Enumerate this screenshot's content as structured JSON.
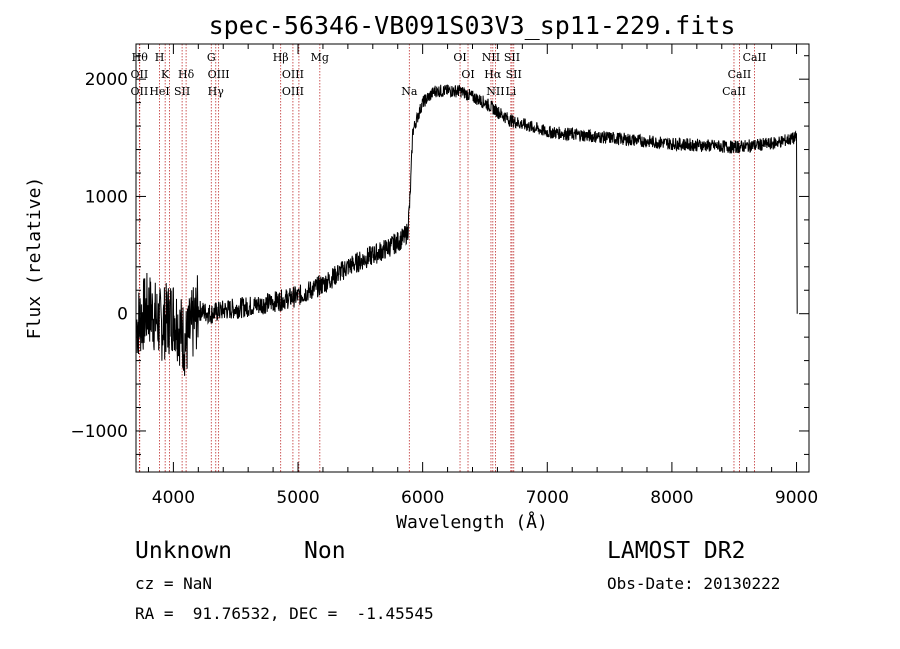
{
  "chart_data": {
    "type": "line",
    "title": "spec-56346-VB091S03V3_sp11-229.fits",
    "xlabel": "Wavelength (Å)",
    "ylabel": "Flux (relative)",
    "xlim": [
      3700,
      9100
    ],
    "ylim": [
      -1350,
      2300
    ],
    "x_ticks": [
      4000,
      5000,
      6000,
      7000,
      8000,
      9000
    ],
    "y_ticks": [
      -1000,
      0,
      1000,
      2000
    ],
    "x_tick_labels": [
      "4000",
      "5000",
      "6000",
      "7000",
      "8000",
      "9000"
    ],
    "y_tick_labels": [
      "−1000",
      "0",
      "1000",
      "2000"
    ],
    "grid": false,
    "line_color": "#000000",
    "marker_color": "#c03030",
    "spectrum_knots": [
      [
        3700,
        -100
      ],
      [
        3800,
        50
      ],
      [
        3900,
        -100
      ],
      [
        4000,
        0
      ],
      [
        4100,
        -250
      ],
      [
        4200,
        30
      ],
      [
        4300,
        0
      ],
      [
        4400,
        30
      ],
      [
        4600,
        60
      ],
      [
        4800,
        100
      ],
      [
        5000,
        150
      ],
      [
        5200,
        250
      ],
      [
        5400,
        400
      ],
      [
        5600,
        500
      ],
      [
        5700,
        550
      ],
      [
        5780,
        600
      ],
      [
        5850,
        650
      ],
      [
        5880,
        700
      ],
      [
        5900,
        1000
      ],
      [
        5920,
        1550
      ],
      [
        5950,
        1650
      ],
      [
        6000,
        1800
      ],
      [
        6100,
        1900
      ],
      [
        6300,
        1900
      ],
      [
        6500,
        1800
      ],
      [
        6700,
        1650
      ],
      [
        7000,
        1550
      ],
      [
        7500,
        1500
      ],
      [
        8000,
        1450
      ],
      [
        8500,
        1420
      ],
      [
        8800,
        1450
      ],
      [
        9000,
        1500
      ],
      [
        9010,
        0
      ]
    ],
    "lines": [
      {
        "wl": 3730,
        "label": "Hθ",
        "row": 0
      },
      {
        "wl": 3727,
        "label": "OII",
        "row": 1
      },
      {
        "wl": 3727,
        "label": "OII",
        "row": 2
      },
      {
        "wl": 3889,
        "label": "H",
        "row": 0
      },
      {
        "wl": 3934,
        "label": "K",
        "row": 1
      },
      {
        "wl": 3889,
        "label": "HeI",
        "row": 2
      },
      {
        "wl": 3968,
        "label": "",
        "row": 0
      },
      {
        "wl": 4070,
        "label": "SII",
        "row": 2
      },
      {
        "wl": 4102,
        "label": "Hδ",
        "row": 1
      },
      {
        "wl": 4304,
        "label": "G",
        "row": 0
      },
      {
        "wl": 4363,
        "label": "OIII",
        "row": 1
      },
      {
        "wl": 4340,
        "label": "Hγ",
        "row": 2
      },
      {
        "wl": 4861,
        "label": "Hβ",
        "row": 0
      },
      {
        "wl": 4959,
        "label": "OIII",
        "row": 1
      },
      {
        "wl": 4959,
        "label": "OIII",
        "row": 2
      },
      {
        "wl": 5007,
        "label": "",
        "row": 0
      },
      {
        "wl": 5175,
        "label": "Mg",
        "row": 0
      },
      {
        "wl": 5893,
        "label": "Na",
        "row": 2
      },
      {
        "wl": 6300,
        "label": "OI",
        "row": 0
      },
      {
        "wl": 6364,
        "label": "OI",
        "row": 1
      },
      {
        "wl": 6548,
        "label": "NII",
        "row": 0
      },
      {
        "wl": 6563,
        "label": "Hα",
        "row": 1
      },
      {
        "wl": 6584,
        "label": "NII",
        "row": 2
      },
      {
        "wl": 6717,
        "label": "SII",
        "row": 0
      },
      {
        "wl": 6731,
        "label": "SII",
        "row": 1
      },
      {
        "wl": 6708,
        "label": "Li",
        "row": 2
      },
      {
        "wl": 8498,
        "label": "CaII",
        "row": 2
      },
      {
        "wl": 8542,
        "label": "CaII",
        "row": 1
      },
      {
        "wl": 8662,
        "label": "CaII",
        "row": 0
      }
    ]
  },
  "info": {
    "class": "Unknown",
    "subclass": "Non",
    "survey": "LAMOST DR2",
    "cz": "cz = NaN",
    "obs_date": "Obs-Date: 20130222",
    "coords": "RA =  91.76532, DEC =  -1.45545"
  }
}
